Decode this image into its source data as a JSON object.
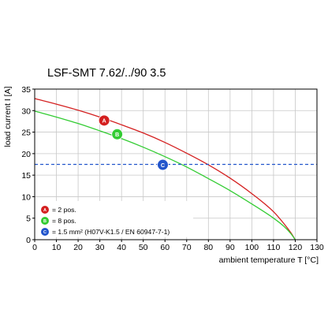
{
  "chart_data": {
    "type": "line",
    "title": "LSF-SMT 7.62/../90 3.5",
    "xlabel": "ambient temperature T [°C]",
    "ylabel": "load current I [A]",
    "xlim": [
      0,
      130
    ],
    "ylim": [
      0,
      35
    ],
    "x_ticks": [
      0,
      10,
      20,
      30,
      40,
      50,
      60,
      70,
      80,
      90,
      100,
      110,
      120,
      130
    ],
    "y_ticks": [
      0,
      5,
      10,
      15,
      20,
      25,
      30,
      35
    ],
    "grid": true,
    "series": [
      {
        "id": "A",
        "color": "#d42020",
        "x": [
          0,
          10,
          20,
          30,
          40,
          50,
          60,
          70,
          80,
          90,
          100,
          110,
          115,
          118,
          120
        ],
        "y": [
          32.8,
          31.5,
          30.1,
          28.5,
          26.7,
          24.8,
          22.6,
          20.1,
          17.4,
          14.3,
          10.7,
          6.5,
          3.6,
          1.6,
          0
        ]
      },
      {
        "id": "B",
        "color": "#33cc33",
        "x": [
          0,
          10,
          20,
          30,
          40,
          50,
          60,
          70,
          80,
          90,
          100,
          110,
          115,
          118,
          120
        ],
        "y": [
          29.9,
          28.5,
          27.0,
          25.3,
          23.5,
          21.5,
          19.3,
          16.9,
          14.2,
          11.4,
          8.3,
          5.0,
          3.0,
          1.4,
          0
        ]
      },
      {
        "id": "C",
        "color": "#2255cc",
        "dashed": true,
        "x": [
          0,
          130
        ],
        "y": [
          17.5,
          17.5
        ]
      }
    ],
    "markers": [
      {
        "letter": "A",
        "x": 32,
        "y": 27.7,
        "color": "#d42020"
      },
      {
        "letter": "B",
        "x": 38,
        "y": 24.5,
        "color": "#33cc33"
      },
      {
        "letter": "C",
        "x": 59,
        "y": 17.4,
        "color": "#2255cc"
      }
    ],
    "legend": [
      {
        "letter": "A",
        "color": "#d42020",
        "text": "= 2 pos."
      },
      {
        "letter": "B",
        "color": "#33cc33",
        "text": "= 8 pos."
      },
      {
        "letter": "C",
        "color": "#2255cc",
        "text": "= 1.5 mm² (H07V-K1.5 / EN 60947-7-1)"
      }
    ],
    "legend_placement": "bottom-left"
  }
}
